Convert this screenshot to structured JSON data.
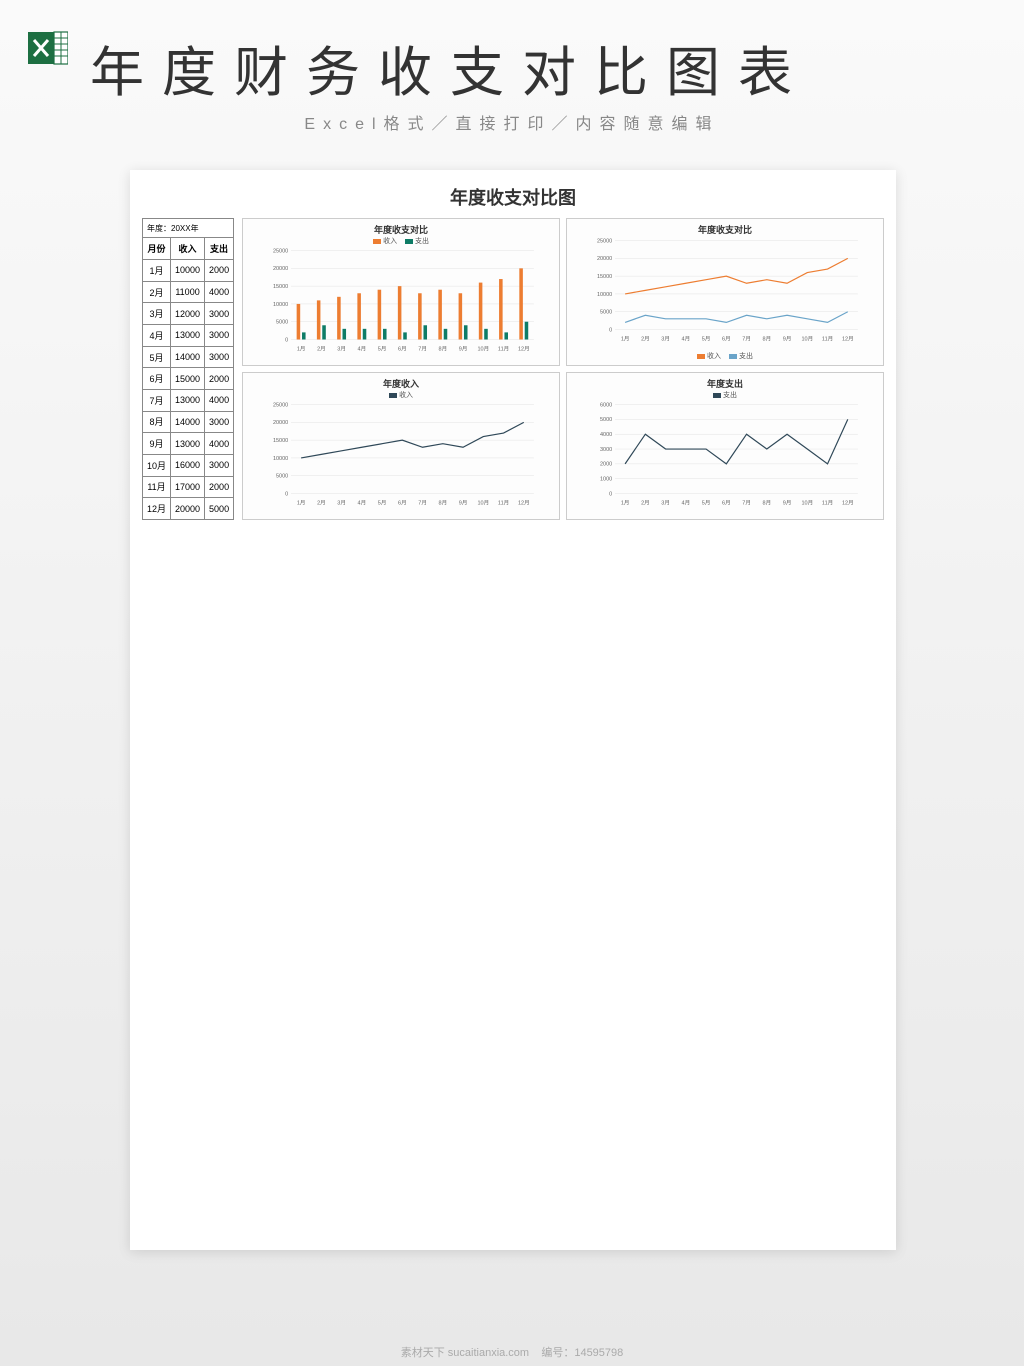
{
  "header": {
    "main_title": "年度财务收支对比图表",
    "subtitle": "Excel格式／直接打印／内容随意编辑"
  },
  "sheet": {
    "title": "年度收支对比图"
  },
  "table": {
    "year_label": "年度：20XX年",
    "columns": [
      "月份",
      "收入",
      "支出"
    ],
    "rows": [
      [
        "1月",
        "10000",
        "2000"
      ],
      [
        "2月",
        "11000",
        "4000"
      ],
      [
        "3月",
        "12000",
        "3000"
      ],
      [
        "4月",
        "13000",
        "3000"
      ],
      [
        "5月",
        "14000",
        "3000"
      ],
      [
        "6月",
        "15000",
        "2000"
      ],
      [
        "7月",
        "13000",
        "4000"
      ],
      [
        "8月",
        "14000",
        "3000"
      ],
      [
        "9月",
        "13000",
        "4000"
      ],
      [
        "10月",
        "16000",
        "3000"
      ],
      [
        "11月",
        "17000",
        "2000"
      ],
      [
        "12月",
        "20000",
        "5000"
      ]
    ]
  },
  "months": [
    "1月",
    "2月",
    "3月",
    "4月",
    "5月",
    "6月",
    "7月",
    "8月",
    "9月",
    "10月",
    "11月",
    "12月"
  ],
  "income": [
    10000,
    11000,
    12000,
    13000,
    14000,
    15000,
    13000,
    14000,
    13000,
    16000,
    17000,
    20000
  ],
  "expense": [
    2000,
    4000,
    3000,
    3000,
    3000,
    2000,
    4000,
    3000,
    4000,
    3000,
    2000,
    5000
  ],
  "chart1": {
    "title": "年度收支对比",
    "type": "bar",
    "legend": {
      "s1": "收入",
      "s2": "支出"
    },
    "ylim": [
      0,
      25000
    ],
    "ytick": 5000,
    "colors": {
      "income": "#ed7d31",
      "expense": "#0e7c66",
      "grid": "#e0e0e0",
      "axis": "#888"
    },
    "bar_width": 0.35
  },
  "chart2": {
    "title": "年度收支对比",
    "type": "line",
    "legend": {
      "s1": "收入",
      "s2": "支出"
    },
    "ylim": [
      0,
      25000
    ],
    "ytick": 5000,
    "colors": {
      "income": "#ed7d31",
      "expense": "#6aa4c9",
      "grid": "#e0e0e0",
      "axis": "#888"
    }
  },
  "chart3": {
    "title": "年度收入",
    "type": "line",
    "legend": {
      "s1": "收入"
    },
    "ylim": [
      0,
      25000
    ],
    "ytick": 5000,
    "colors": {
      "income": "#2f4858",
      "grid": "#e0e0e0",
      "axis": "#888"
    }
  },
  "chart4": {
    "title": "年度支出",
    "type": "line",
    "legend": {
      "s1": "支出"
    },
    "ylim": [
      0,
      6000
    ],
    "ytick": 1000,
    "colors": {
      "expense": "#2f4858",
      "grid": "#e0e0e0",
      "axis": "#888"
    }
  },
  "footer": {
    "site": "素材天下 sucaitianxia.com",
    "id_label": "编号：",
    "id_value": "14595798"
  },
  "colors": {
    "excel_green": "#1d6f42",
    "background": "#f5f5f5"
  }
}
